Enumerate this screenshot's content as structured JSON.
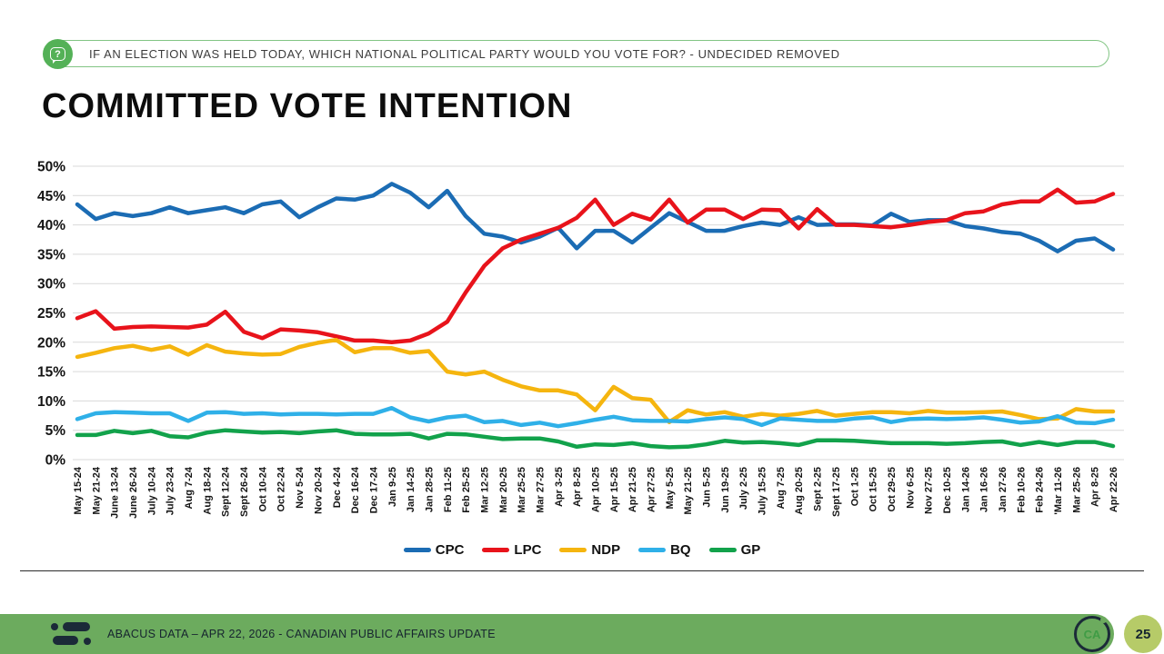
{
  "header": {
    "icon": "question-bubble-icon",
    "icon_glyph": "?",
    "question": "IF AN ELECTION WAS HELD TODAY, WHICH NATIONAL POLITICAL PARTY WOULD YOU VOTE FOR? - UNDECIDED REMOVED"
  },
  "title": "COMMITTED VOTE INTENTION",
  "chart_data": {
    "type": "line",
    "title": "COMMITTED VOTE INTENTION",
    "ylim": [
      0,
      50
    ],
    "y_tick_step": 5,
    "y_tick_suffix": "%",
    "grid": true,
    "gridline_color": "#d9d9d9",
    "legend_position": "bottom-center",
    "x_labels": [
      "May 15-24",
      "May 21-24",
      "June 13-24",
      "June 26-24",
      "July 10-24",
      "July 23-24",
      "Aug 7-24",
      "Aug 18-24",
      "Sept 12-24",
      "Sept 26-24",
      "Oct 10-24",
      "Oct 22-24",
      "Nov 5-24",
      "Nov 20-24",
      "Dec 4-24",
      "Dec 16-24",
      "Dec 17-24",
      "Jan 9-25",
      "Jan 14-25",
      "Jan 28-25",
      "Feb 11-25",
      "Feb 25-25",
      "Mar 12-25",
      "Mar 20-25",
      "Mar 25-25",
      "Mar 27-25",
      "Apr 3-25",
      "Apr 8-25",
      "Apr 10-25",
      "Apr 15-25",
      "Apr 21-25",
      "Apr 27-25",
      "May 5-25",
      "May 21-25",
      "Jun 5-25",
      "Jun 19-25",
      "July 2-25",
      "July 15-25",
      "Aug 7-25",
      "Aug 20-25",
      "Sept 2-25",
      "Sept 17-25",
      "Oct 1-25",
      "Oct 15-25",
      "Oct 29-25",
      "Nov 6-25",
      "Nov 27-25",
      "Dec 10-25",
      "Jan 14-26",
      "Jan 16-26",
      "Jan 27-26",
      "Feb 10-26",
      "Feb 24-26",
      "'Mar 11-26",
      "Mar 25-26",
      "Apr 8-25",
      "Apr 22-26"
    ],
    "series": [
      {
        "name": "CPC",
        "color": "#1b6cb4",
        "values": [
          43.5,
          41.0,
          42.0,
          41.5,
          42.0,
          43.0,
          42.0,
          42.5,
          43.0,
          42.0,
          43.5,
          44.0,
          41.3,
          43.0,
          44.5,
          44.3,
          45.0,
          47.0,
          45.5,
          43.0,
          45.8,
          41.5,
          38.5,
          38.0,
          37.0,
          38.0,
          39.5,
          36.0,
          39.0,
          39.0,
          37.0,
          39.5,
          42.0,
          40.5,
          39.0,
          39.0,
          39.8,
          40.4,
          40.0,
          41.3,
          40.0,
          40.1,
          40.1,
          39.9,
          41.9,
          40.5,
          40.8,
          40.8,
          39.8,
          39.4,
          38.8,
          38.5,
          37.3,
          35.5,
          37.3,
          37.7,
          35.8
        ]
      },
      {
        "name": "LPC",
        "color": "#e8131b",
        "values": [
          24.1,
          25.3,
          22.3,
          22.6,
          22.7,
          22.6,
          22.5,
          23.0,
          25.2,
          21.8,
          20.7,
          22.2,
          22.0,
          21.7,
          21.0,
          20.3,
          20.3,
          20.0,
          20.3,
          21.5,
          23.5,
          28.5,
          33.0,
          36.0,
          37.5,
          38.5,
          39.5,
          41.2,
          44.3,
          40.0,
          41.9,
          40.9,
          44.3,
          40.4,
          42.6,
          42.6,
          41.0,
          42.6,
          42.5,
          39.4,
          42.7,
          40.0,
          40.0,
          39.8,
          39.6,
          40.0,
          40.5,
          40.8,
          42.0,
          42.3,
          43.5,
          44.0,
          44.0,
          46.0,
          43.8,
          44.0,
          45.3
        ]
      },
      {
        "name": "NDP",
        "color": "#f5b50f",
        "values": [
          17.5,
          18.2,
          19.0,
          19.4,
          18.7,
          19.3,
          17.9,
          19.5,
          18.4,
          18.1,
          17.9,
          18.0,
          19.2,
          19.9,
          20.4,
          18.3,
          19.0,
          19.0,
          18.2,
          18.5,
          15.0,
          14.5,
          15.0,
          13.6,
          12.5,
          11.8,
          11.8,
          11.1,
          8.4,
          12.4,
          10.5,
          10.2,
          6.4,
          8.4,
          7.7,
          8.1,
          7.3,
          7.8,
          7.5,
          7.8,
          8.3,
          7.5,
          7.8,
          8.1,
          8.1,
          7.9,
          8.3,
          8.0,
          8.0,
          8.1,
          8.2,
          7.6,
          6.9,
          7.0,
          8.6,
          8.2,
          8.2
        ]
      },
      {
        "name": "BQ",
        "color": "#2fb0e8",
        "values": [
          6.9,
          7.9,
          8.1,
          8.0,
          7.9,
          7.9,
          6.6,
          8.0,
          8.1,
          7.8,
          7.9,
          7.7,
          7.8,
          7.8,
          7.7,
          7.8,
          7.8,
          8.8,
          7.2,
          6.5,
          7.2,
          7.5,
          6.4,
          6.6,
          5.9,
          6.3,
          5.7,
          6.2,
          6.8,
          7.3,
          6.7,
          6.6,
          6.6,
          6.5,
          6.9,
          7.2,
          6.9,
          5.9,
          7.0,
          6.8,
          6.6,
          6.6,
          7.0,
          7.2,
          6.4,
          6.9,
          7.0,
          6.9,
          7.0,
          7.2,
          6.8,
          6.3,
          6.5,
          7.4,
          6.3,
          6.2,
          6.8
        ]
      },
      {
        "name": "GP",
        "color": "#12a24b",
        "values": [
          4.2,
          4.2,
          4.9,
          4.5,
          4.9,
          4.0,
          3.8,
          4.6,
          5.0,
          4.8,
          4.6,
          4.7,
          4.5,
          4.8,
          5.0,
          4.4,
          4.3,
          4.3,
          4.4,
          3.6,
          4.4,
          4.3,
          3.9,
          3.5,
          3.6,
          3.6,
          3.1,
          2.2,
          2.6,
          2.5,
          2.8,
          2.3,
          2.1,
          2.2,
          2.6,
          3.2,
          2.9,
          3.0,
          2.8,
          2.5,
          3.3,
          3.3,
          3.2,
          3.0,
          2.8,
          2.8,
          2.8,
          2.7,
          2.8,
          3.0,
          3.1,
          2.5,
          3.0,
          2.5,
          3.0,
          3.0,
          2.3
        ]
      }
    ]
  },
  "footer": {
    "source_text": "ABACUS DATA – APR 22, 2026 - CANADIAN PUBLIC AFFAIRS UPDATE",
    "badge": "CA",
    "page_number": "25",
    "bar_color": "#6cab5e",
    "page_circle_color": "#b6cb68"
  }
}
